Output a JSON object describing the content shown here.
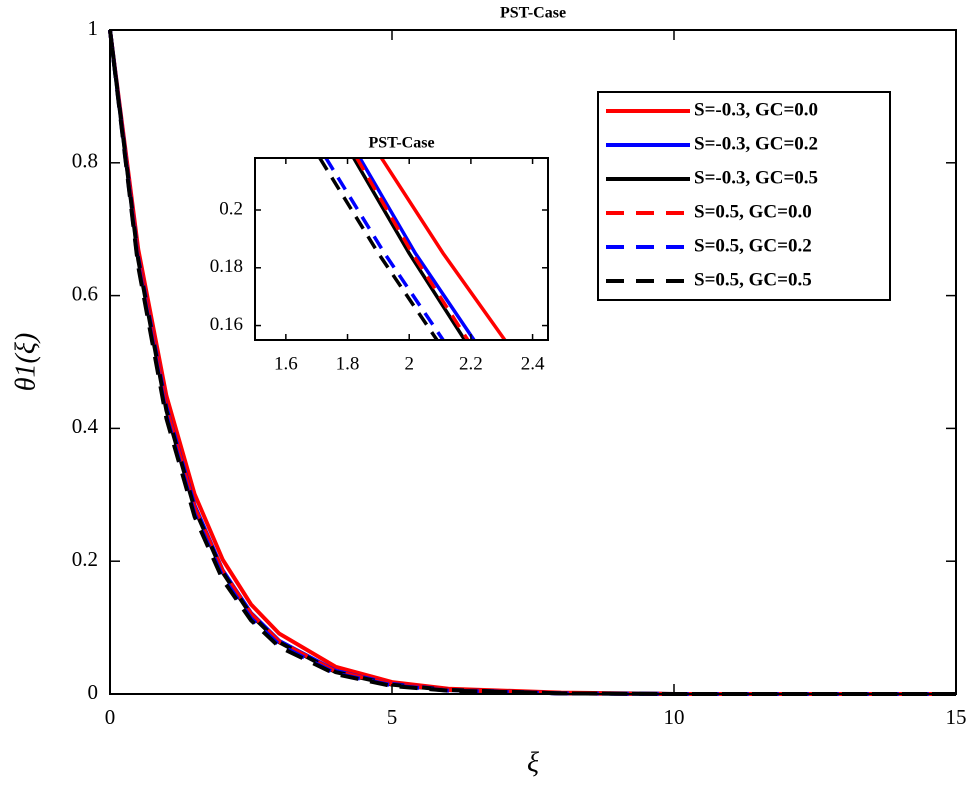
{
  "chart_data": [
    {
      "type": "line",
      "title": "PST-Case",
      "x_label": "ξ",
      "y_label": "θ1(ξ)",
      "x": [
        0,
        0.5,
        1,
        1.5,
        2,
        2.5,
        3,
        4,
        5,
        6,
        8,
        10,
        15
      ],
      "series": [
        {
          "name": "S=-0.3, GC=0.0",
          "color": "#ff0000",
          "dash": false,
          "values": [
            1,
            0.67,
            0.449,
            0.301,
            0.202,
            0.135,
            0.091,
            0.041,
            0.018,
            0.008,
            0.002,
            0,
            0
          ]
        },
        {
          "name": "S=-0.3, GC=0.2",
          "color": "#0000ff",
          "dash": false,
          "values": [
            1,
            0.657,
            0.432,
            0.284,
            0.186,
            0.122,
            0.08,
            0.035,
            0.015,
            0.006,
            0.001,
            0,
            0
          ]
        },
        {
          "name": "S=-0.3, GC=0.5",
          "color": "#000000",
          "dash": false,
          "values": [
            1,
            0.654,
            0.427,
            0.279,
            0.183,
            0.119,
            0.078,
            0.033,
            0.014,
            0.006,
            0.001,
            0,
            0
          ]
        },
        {
          "name": "S=0.5, GC=0.0",
          "color": "#ff0000",
          "dash": true,
          "values": [
            1,
            0.655,
            0.43,
            0.281,
            0.185,
            0.121,
            0.079,
            0.034,
            0.015,
            0.006,
            0.001,
            0,
            0
          ]
        },
        {
          "name": "S=0.5, GC=0.2",
          "color": "#0000ff",
          "dash": true,
          "values": [
            1,
            0.647,
            0.419,
            0.271,
            0.176,
            0.114,
            0.074,
            0.031,
            0.013,
            0.005,
            0.001,
            0,
            0
          ]
        },
        {
          "name": "S=0.5, GC=0.5",
          "color": "#000000",
          "dash": true,
          "values": [
            1,
            0.644,
            0.415,
            0.267,
            0.172,
            0.111,
            0.071,
            0.03,
            0.012,
            0.005,
            0.001,
            0,
            0
          ]
        }
      ],
      "xlim": [
        0,
        15
      ],
      "ylim": [
        0,
        1
      ],
      "xticks": [
        0,
        5,
        10,
        15
      ],
      "yticks": [
        0,
        0.2,
        0.4,
        0.6,
        0.8,
        1
      ],
      "legend": "upper right"
    },
    {
      "type": "line",
      "title": "PST-Case",
      "series": [
        {
          "color": "#ff0000",
          "dash": false,
          "x": [
            1.91,
            2.11,
            2.31
          ],
          "values": [
            0.218,
            0.185,
            0.155
          ]
        },
        {
          "color": "#0000ff",
          "dash": false,
          "x": [
            1.84,
            2.02,
            2.21
          ],
          "values": [
            0.218,
            0.185,
            0.155
          ]
        },
        {
          "color": "#000000",
          "dash": false,
          "x": [
            1.82,
            2.0,
            2.18
          ],
          "values": [
            0.218,
            0.185,
            0.155
          ]
        },
        {
          "color": "#ff0000",
          "dash": true,
          "x": [
            1.83,
            2.01,
            2.19
          ],
          "values": [
            0.218,
            0.185,
            0.155
          ]
        },
        {
          "color": "#0000ff",
          "dash": true,
          "x": [
            1.73,
            1.92,
            2.11
          ],
          "values": [
            0.218,
            0.185,
            0.155
          ]
        },
        {
          "color": "#000000",
          "dash": true,
          "x": [
            1.71,
            1.9,
            2.09
          ],
          "values": [
            0.218,
            0.185,
            0.155
          ]
        }
      ],
      "xlim": [
        1.5,
        2.45
      ],
      "ylim": [
        0.155,
        0.218
      ],
      "xticks": [
        1.6,
        1.8,
        2,
        2.2,
        2.4
      ],
      "yticks": [
        0.16,
        0.18,
        0.2
      ]
    }
  ]
}
